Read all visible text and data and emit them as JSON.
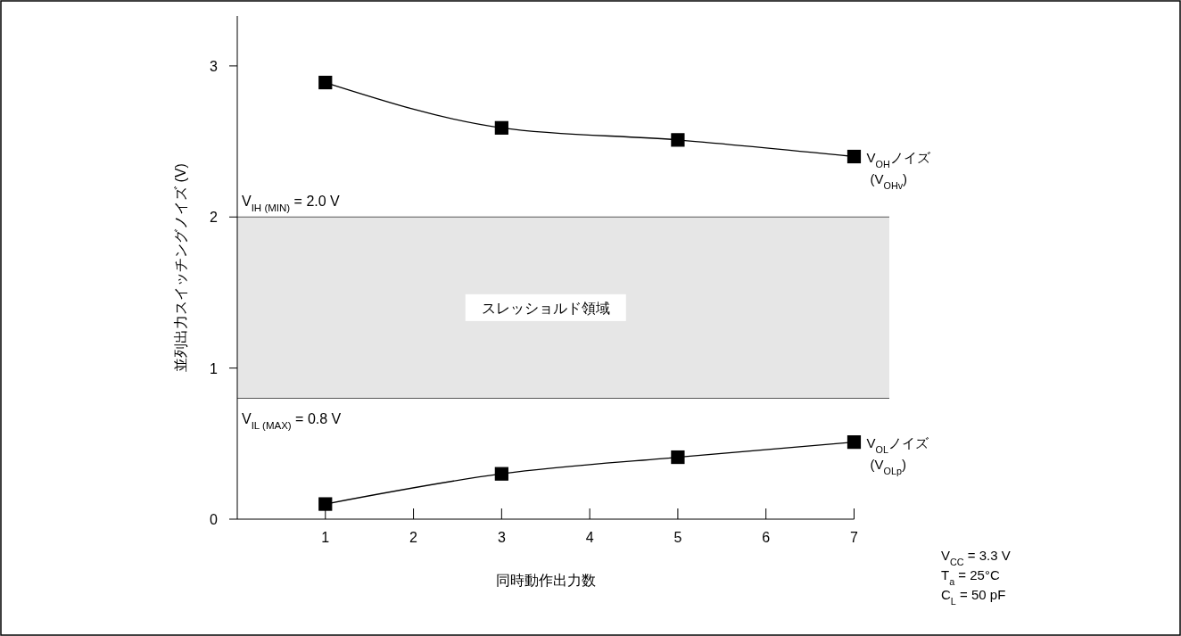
{
  "chart_data": {
    "type": "line",
    "xlabel": "同時動作出力数",
    "ylabel": "並列出力スイッチングノイズ (V)",
    "x": [
      1,
      3,
      5,
      7
    ],
    "xlim": [
      0,
      7.4
    ],
    "xticks": [
      1,
      2,
      3,
      4,
      5,
      6,
      7
    ],
    "ylim": [
      0,
      3.33
    ],
    "yticks": [
      0,
      1,
      2,
      3
    ],
    "grid": false,
    "marker": "square",
    "line_style": "solid",
    "series": [
      {
        "name": "V$_{OH}$ノイズ\n(V$_{OHv}$)",
        "color": "#000000",
        "values": [
          2.89,
          2.59,
          2.51,
          2.4
        ]
      },
      {
        "name": "V$_{OL}$ノイズ\n(V$_{OLp}$)",
        "color": "#000000",
        "values": [
          0.1,
          0.3,
          0.41,
          0.51
        ]
      }
    ],
    "bands": [
      {
        "axis": "y",
        "from": 0.8,
        "to": 2.0,
        "label": "スレッショルド領域",
        "color": "#e6e6e6"
      }
    ],
    "ref_lines": [
      {
        "axis": "y",
        "value": 2.0,
        "label": "V$_{IH (MIN)}$ = 2.0 V",
        "color": "#555555"
      },
      {
        "axis": "y",
        "value": 0.8,
        "label": "V$_{IL (MAX)}$ = 0.8 V",
        "color": "#555555"
      }
    ],
    "annotations": [
      "V$_{CC}$ = 3.3 V",
      "T$_{a}$ = 25°C",
      "C$_{L}$ = 50 pF"
    ]
  }
}
